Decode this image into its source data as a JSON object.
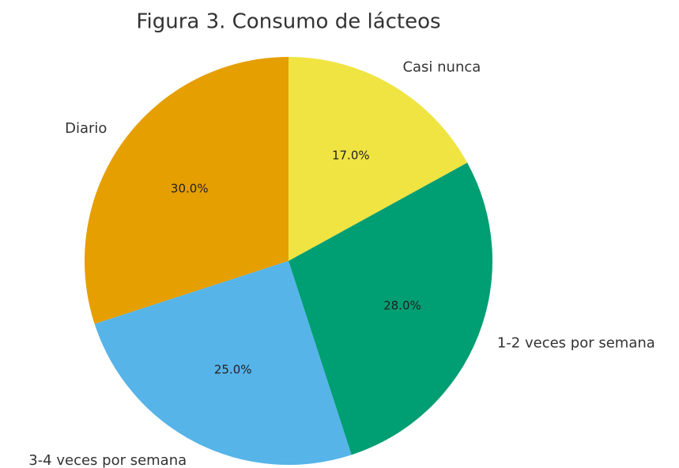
{
  "chart_data": {
    "type": "pie",
    "title": "Figura 3. Consumo de lácteos",
    "categories": [
      "Diario",
      "3-4 veces por semana",
      "1-2 veces por semana",
      "Casi nunca"
    ],
    "values": [
      30,
      25,
      28,
      17
    ],
    "value_labels": [
      "30.0%",
      "25.0%",
      "28.0%",
      "17.0%"
    ],
    "colors": [
      "#E69F00",
      "#56B4E9",
      "#009E73",
      "#F0E442"
    ],
    "start_angle": 90,
    "counterclockwise": true
  }
}
